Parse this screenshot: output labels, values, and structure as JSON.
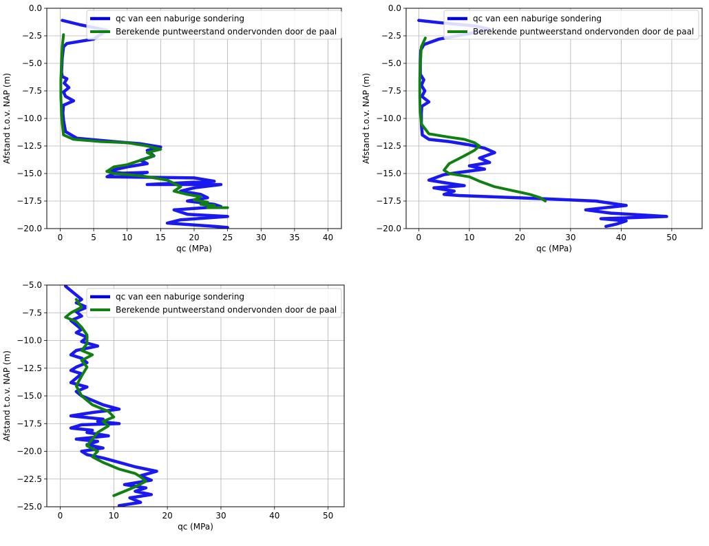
{
  "colors": {
    "measured": "#0000ee",
    "computed": "#108010",
    "grid": "#b0b0b0"
  },
  "legend": {
    "measured_label": "qc van een naburige sondering",
    "computed_label": "Berekende puntweerstand ondervonden door de paal"
  },
  "chart_data": [
    {
      "type": "line",
      "title": "",
      "xlabel": "qc (MPa)",
      "ylabel": "Afstand t.o.v. NAP (m)",
      "xlim": [
        -2,
        42
      ],
      "ylim": [
        -20,
        0
      ],
      "xticks": [
        0,
        5,
        10,
        15,
        20,
        25,
        30,
        35,
        40
      ],
      "yticks": [
        0,
        -2.5,
        -5,
        -7.5,
        -10,
        -12.5,
        -15,
        -17.5,
        -20
      ],
      "xtick_labels": [
        "0",
        "5",
        "10",
        "15",
        "20",
        "25",
        "30",
        "35",
        "40"
      ],
      "ytick_labels": [
        "0.0",
        "−2.5",
        "−5.0",
        "−7.5",
        "−10.0",
        "−12.5",
        "−15.0",
        "−17.5",
        "−20.0"
      ],
      "legend_position": "upper-right",
      "grid": true,
      "series": [
        {
          "name": "qc van een naburige sondering",
          "x": [
            0.3,
            3,
            7,
            5,
            1,
            0.5,
            0.3,
            0.2,
            0.3,
            1,
            0.6,
            1.3,
            0.5,
            0.8,
            2,
            0.5,
            0.4,
            0.5,
            0.8,
            2.5,
            8,
            12,
            15,
            13,
            14,
            12,
            13,
            10,
            7,
            11,
            13,
            8,
            7,
            20,
            23,
            13,
            24,
            20,
            18,
            21,
            22,
            19,
            23,
            24,
            17,
            19,
            25,
            18,
            16,
            23,
            25,
            24
          ],
          "y": [
            -1.1,
            -1.5,
            -2.0,
            -2.8,
            -3.2,
            -3.5,
            -4.5,
            -5.8,
            -6.2,
            -6.4,
            -6.8,
            -7.2,
            -7.6,
            -8.0,
            -8.4,
            -8.8,
            -9.5,
            -10.2,
            -11.2,
            -11.8,
            -12.1,
            -12.3,
            -12.6,
            -12.9,
            -13.4,
            -13.8,
            -14.1,
            -14.4,
            -14.8,
            -15.1,
            -14.9,
            -15.0,
            -15.3,
            -15.4,
            -15.7,
            -16.0,
            -16.0,
            -16.3,
            -16.6,
            -16.9,
            -17.2,
            -17.5,
            -17.8,
            -18.0,
            -18.3,
            -18.7,
            -18.9,
            -19.2,
            -19.5,
            -19.8,
            -19.9,
            -20.0
          ]
        },
        {
          "name": "Berekende puntweerstand ondervonden door de paal",
          "x": [
            0.5,
            0.3,
            0.2,
            0.1,
            0.1,
            0.2,
            0.3,
            0.5,
            2,
            6,
            10,
            13,
            15,
            13,
            14,
            12,
            10,
            8,
            7,
            8,
            12,
            16,
            18,
            17,
            19,
            21,
            20,
            22,
            21,
            23,
            22,
            25
          ],
          "y": [
            -2.4,
            -3.5,
            -5.0,
            -6.5,
            -8.0,
            -9.5,
            -10.5,
            -11.5,
            -11.9,
            -12.1,
            -12.2,
            -12.5,
            -12.8,
            -13.1,
            -13.4,
            -13.8,
            -14.2,
            -14.4,
            -14.8,
            -15.0,
            -15.2,
            -15.6,
            -16.2,
            -16.6,
            -16.9,
            -17.1,
            -17.4,
            -17.6,
            -17.8,
            -17.9,
            -18.1,
            -18.1
          ]
        }
      ]
    },
    {
      "type": "line",
      "title": "",
      "xlabel": "qc (MPa)",
      "ylabel": "Afstand t.o.v. NAP (m)",
      "xlim": [
        -2.5,
        56
      ],
      "ylim": [
        -20,
        0
      ],
      "xticks": [
        0,
        10,
        20,
        30,
        40,
        50
      ],
      "yticks": [
        0,
        -2.5,
        -5,
        -7.5,
        -10,
        -12.5,
        -15,
        -17.5,
        -20
      ],
      "xtick_labels": [
        "0",
        "10",
        "20",
        "30",
        "40",
        "50"
      ],
      "ytick_labels": [
        "0.0",
        "−2.5",
        "−5.0",
        "−7.5",
        "−10.0",
        "−12.5",
        "−15.0",
        "−17.5",
        "−20.0"
      ],
      "legend_position": "upper-right",
      "grid": true,
      "series": [
        {
          "name": "qc van een naburige sondering",
          "x": [
            0,
            4,
            11,
            14,
            10,
            4,
            1,
            0.4,
            0.3,
            0.3,
            1,
            0.5,
            1.2,
            0.6,
            2,
            0.6,
            0.5,
            0.5,
            0.7,
            2,
            6,
            10,
            13,
            15,
            12,
            14,
            10,
            13,
            8,
            5,
            2,
            6,
            9,
            3,
            7,
            5,
            8,
            25,
            35,
            41,
            33,
            38,
            49,
            36,
            41,
            39,
            37
          ],
          "y": [
            -1.1,
            -1.3,
            -1.6,
            -1.9,
            -2.3,
            -2.8,
            -3.3,
            -3.8,
            -5.0,
            -6.0,
            -6.5,
            -7.0,
            -7.5,
            -8.0,
            -8.5,
            -8.9,
            -9.5,
            -10.5,
            -11.5,
            -11.9,
            -12.1,
            -12.4,
            -12.7,
            -13.1,
            -13.6,
            -14.0,
            -14.3,
            -14.6,
            -14.9,
            -15.1,
            -15.6,
            -15.9,
            -16.1,
            -16.3,
            -16.6,
            -16.9,
            -17.0,
            -17.3,
            -17.5,
            -17.9,
            -18.3,
            -18.6,
            -18.9,
            -19.1,
            -19.3,
            -19.6,
            -19.8
          ]
        },
        {
          "name": "Berekende puntweerstand ondervonden door de paal",
          "x": [
            1.3,
            0.5,
            0.3,
            0.2,
            0.2,
            0.3,
            0.5,
            2,
            6,
            9,
            11,
            12,
            11,
            9,
            6,
            5,
            6,
            10,
            12,
            15,
            19,
            22,
            24,
            25
          ],
          "y": [
            -2.7,
            -3.5,
            -5.0,
            -6.5,
            -8.0,
            -9.5,
            -10.5,
            -11.4,
            -11.7,
            -11.9,
            -12.2,
            -12.5,
            -12.9,
            -13.4,
            -14.1,
            -14.7,
            -15.0,
            -15.3,
            -15.7,
            -16.2,
            -16.6,
            -16.9,
            -17.2,
            -17.5
          ]
        }
      ]
    },
    {
      "type": "line",
      "title": "",
      "xlabel": "qc (MPa)",
      "ylabel": "Afstand t.o.v. NAP (m)",
      "xlim": [
        -2.5,
        53
      ],
      "ylim": [
        -25,
        -5
      ],
      "xticks": [
        0,
        10,
        20,
        30,
        40,
        50
      ],
      "yticks": [
        -5,
        -7.5,
        -10,
        -12.5,
        -15,
        -17.5,
        -20,
        -22.5,
        -25
      ],
      "xtick_labels": [
        "0",
        "10",
        "20",
        "30",
        "40",
        "50"
      ],
      "ytick_labels": [
        "−5.0",
        "−7.5",
        "−10.0",
        "−12.5",
        "−15.0",
        "−17.5",
        "−20.0",
        "−22.5",
        "−25.0"
      ],
      "legend_position": "upper-right",
      "grid": true,
      "series": [
        {
          "name": "qc van een naburige sondering",
          "x": [
            1,
            2,
            3,
            4,
            3,
            5,
            3,
            4,
            2,
            3,
            4,
            3,
            5,
            4,
            7,
            3,
            2,
            4,
            5,
            3,
            2,
            4,
            3,
            2,
            5,
            3,
            4,
            6,
            8,
            11,
            6,
            2,
            8,
            7,
            11,
            4,
            2,
            6,
            5,
            9,
            3,
            7,
            5,
            8,
            4,
            5,
            8,
            11,
            14,
            18,
            15,
            17,
            12,
            16,
            14,
            17,
            13,
            15,
            11
          ],
          "y": [
            -5.1,
            -5.5,
            -5.9,
            -6.3,
            -6.6,
            -7.0,
            -7.4,
            -7.8,
            -8.2,
            -8.6,
            -9.0,
            -9.3,
            -9.7,
            -10.1,
            -10.5,
            -10.9,
            -11.3,
            -11.6,
            -12.0,
            -12.4,
            -12.7,
            -13.0,
            -13.4,
            -13.8,
            -14.2,
            -14.6,
            -15.0,
            -15.4,
            -15.8,
            -16.2,
            -16.5,
            -16.8,
            -17.1,
            -17.3,
            -17.5,
            -17.6,
            -17.9,
            -18.1,
            -18.3,
            -18.6,
            -18.9,
            -19.1,
            -19.4,
            -19.7,
            -20.0,
            -20.3,
            -20.6,
            -21.0,
            -21.4,
            -21.8,
            -22.2,
            -22.6,
            -23.0,
            -23.3,
            -23.6,
            -23.9,
            -24.2,
            -24.6,
            -24.9
          ]
        },
        {
          "name": "Berekende puntweerstand ondervonden door de paal",
          "x": [
            3,
            4,
            2,
            1,
            3,
            4,
            5,
            5,
            4,
            6,
            4,
            5,
            4,
            3,
            4,
            6,
            9,
            10,
            8,
            9,
            7,
            6,
            5,
            7,
            6,
            8,
            11,
            14,
            15,
            16,
            14,
            12,
            10
          ],
          "y": [
            -6.3,
            -7.0,
            -7.5,
            -7.9,
            -8.3,
            -8.8,
            -9.5,
            -10.3,
            -10.9,
            -11.3,
            -11.8,
            -12.4,
            -13.2,
            -14.1,
            -15.0,
            -15.8,
            -16.4,
            -16.9,
            -17.3,
            -17.7,
            -18.3,
            -18.9,
            -19.5,
            -20.0,
            -20.5,
            -21.0,
            -21.6,
            -22.0,
            -22.3,
            -22.7,
            -23.2,
            -23.6,
            -24.0
          ]
        }
      ]
    }
  ]
}
